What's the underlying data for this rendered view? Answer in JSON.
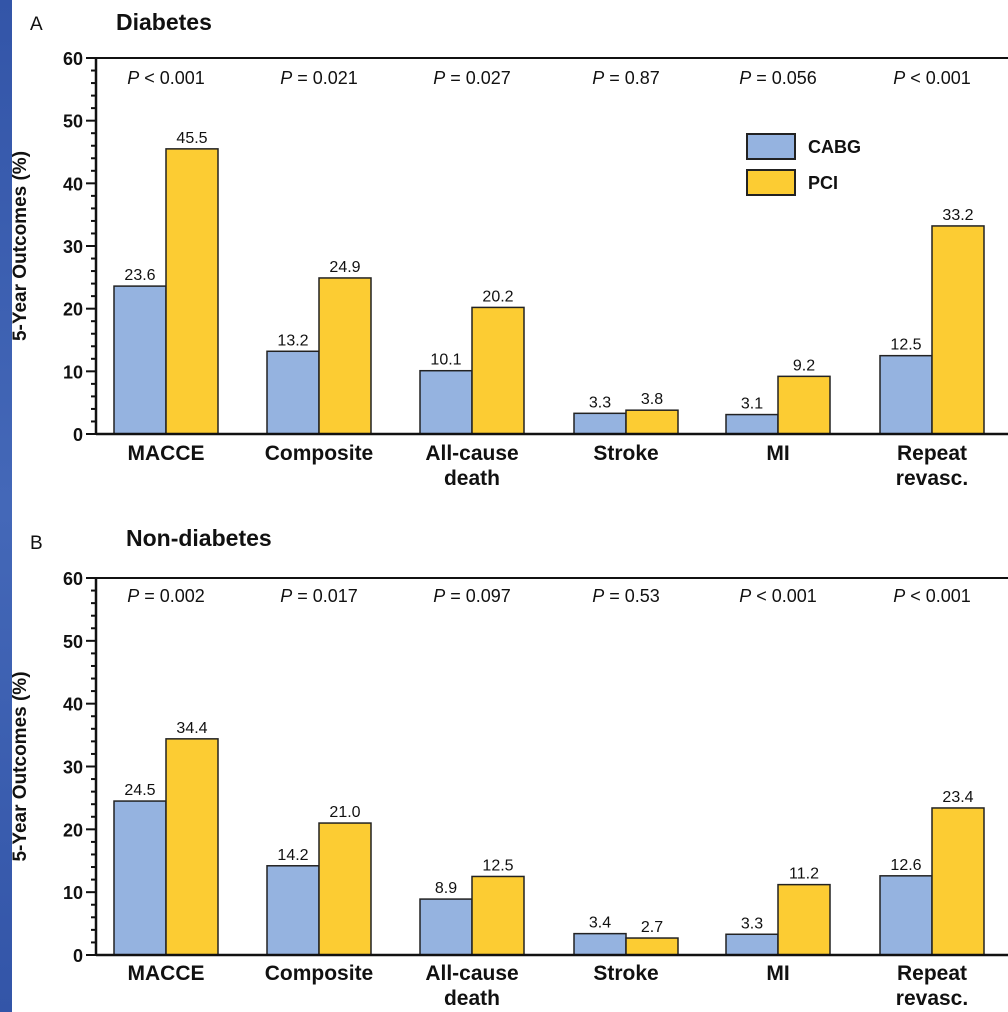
{
  "chart_data": [
    {
      "type": "bar",
      "panel_letter": "A",
      "title": "Diabetes",
      "ylabel": "5-Year Outcomes  (%)",
      "ylim": [
        0,
        60
      ],
      "yticks": [
        0,
        10,
        20,
        30,
        40,
        50,
        60
      ],
      "categories": [
        [
          "MACCE"
        ],
        [
          "Composite"
        ],
        [
          "All-cause",
          "death"
        ],
        [
          "Stroke"
        ],
        [
          "MI"
        ],
        [
          "Repeat",
          "revasc."
        ]
      ],
      "p_values": [
        {
          "op": "<",
          "value": "0.001"
        },
        {
          "op": "=",
          "value": "0.021"
        },
        {
          "op": "=",
          "value": "0.027"
        },
        {
          "op": "=",
          "value": "0.87"
        },
        {
          "op": "=",
          "value": "0.056"
        },
        {
          "op": "<",
          "value": "0.001"
        }
      ],
      "series": [
        {
          "name": "CABG",
          "color": "#95b3e0",
          "values": [
            23.6,
            13.2,
            10.1,
            3.3,
            3.1,
            12.5
          ],
          "labels": [
            "23.6",
            "13.2",
            "10.1",
            "3.3",
            "3.1",
            "12.5"
          ]
        },
        {
          "name": "PCI",
          "color": "#fccc33",
          "values": [
            45.5,
            24.9,
            20.2,
            3.8,
            9.2,
            33.2
          ],
          "labels": [
            "45.5",
            "24.9",
            "20.2",
            "3.8",
            "9.2",
            "33.2"
          ]
        }
      ],
      "legend": {
        "position": "top-right"
      }
    },
    {
      "type": "bar",
      "panel_letter": "B",
      "title": "Non-diabetes",
      "ylabel": "5-Year Outcomes  (%)",
      "ylim": [
        0,
        60
      ],
      "yticks": [
        0,
        10,
        20,
        30,
        40,
        50,
        60
      ],
      "categories": [
        [
          "MACCE"
        ],
        [
          "Composite"
        ],
        [
          "All-cause",
          "death"
        ],
        [
          "Stroke"
        ],
        [
          "MI"
        ],
        [
          "Repeat",
          "revasc."
        ]
      ],
      "p_values": [
        {
          "op": "=",
          "value": "0.002"
        },
        {
          "op": "=",
          "value": "0.017"
        },
        {
          "op": "=",
          "value": "0.097"
        },
        {
          "op": "=",
          "value": "0.53"
        },
        {
          "op": "<",
          "value": "0.001"
        },
        {
          "op": "<",
          "value": "0.001"
        }
      ],
      "series": [
        {
          "name": "CABG",
          "color": "#95b3e0",
          "values": [
            24.5,
            14.2,
            8.9,
            3.4,
            3.3,
            12.6
          ],
          "labels": [
            "24.5",
            "14.2",
            "8.9",
            "3.4",
            "3.3",
            "12.6"
          ]
        },
        {
          "name": "PCI",
          "color": "#fccc33",
          "values": [
            34.4,
            21.0,
            12.5,
            2.7,
            11.2,
            23.4
          ],
          "labels": [
            "34.4",
            "21.0",
            "12.5",
            "2.7",
            "11.2",
            "23.4"
          ]
        }
      ]
    }
  ]
}
